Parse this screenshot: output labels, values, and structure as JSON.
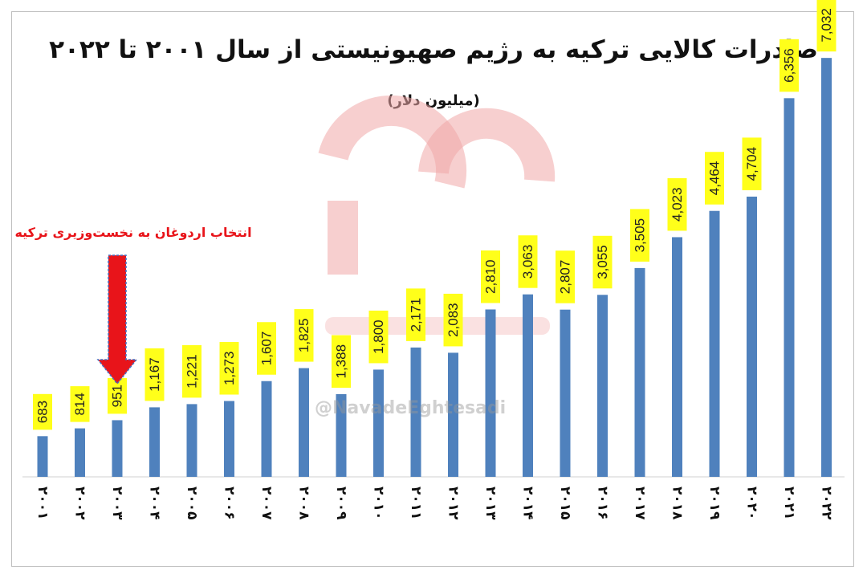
{
  "chart_data": {
    "type": "bar",
    "title": "صادرات کالایی ترکیه به رژیم صهیونیستی از سال ۲۰۰۱ تا ۲۰۲۲",
    "subtitle": "(میلیون دلار)",
    "categories": [
      "۲۰۰۱",
      "۲۰۰۲",
      "۲۰۰۳",
      "۲۰۰۴",
      "۲۰۰۵",
      "۲۰۰۶",
      "۲۰۰۷",
      "۲۰۰۸",
      "۲۰۰۹",
      "۲۰۱۰",
      "۲۰۱۱",
      "۲۰۱۲",
      "۲۰۱۳",
      "۲۰۱۴",
      "۲۰۱۵",
      "۲۰۱۶",
      "۲۰۱۷",
      "۲۰۱۸",
      "۲۰۱۹",
      "۲۰۲۰",
      "۲۰۲۱",
      "۲۰۲۲"
    ],
    "values": [
      683,
      814,
      951,
      1167,
      1221,
      1273,
      1607,
      1825,
      1388,
      1800,
      2171,
      2083,
      2810,
      3063,
      2807,
      3055,
      3505,
      4023,
      4464,
      4704,
      6356,
      7032
    ],
    "value_labels": [
      "683",
      "814",
      "951",
      "1,167",
      "1,221",
      "1,273",
      "1,607",
      "1,825",
      "1,388",
      "1,800",
      "2,171",
      "2,083",
      "2,810",
      "3,063",
      "2,807",
      "3,055",
      "3,505",
      "4,023",
      "4,464",
      "4,704",
      "6,356",
      "7,032"
    ],
    "ylim": [
      0,
      7600
    ],
    "grid": false,
    "annotation": {
      "text": "انتخاب اردوغان به نخست‌وزیری ترکیه",
      "category_index": 2
    },
    "colors": {
      "bar": "#4f81bd",
      "label_bg": "#ffff1a",
      "arrow": "#e8141a",
      "arrow_border": "#4472c4",
      "watermark": "#f0a8a8"
    }
  },
  "watermark": {
    "handle": "@NavadeEghtesadi"
  }
}
